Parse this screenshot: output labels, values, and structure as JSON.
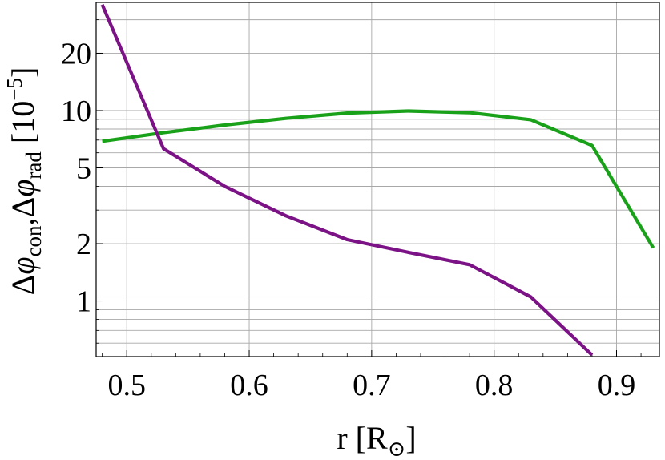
{
  "chart_data": {
    "type": "line",
    "title": "",
    "xlabel": {
      "main": "r [R",
      "symbol": "⊙",
      "close": "]"
    },
    "ylabel": {
      "delta1": "Δ",
      "phi1": "φ",
      "sub1": "con",
      "comma": ",",
      "delta2": "Δ",
      "phi2": "φ",
      "sub2": "rad",
      "unit_open": " [10",
      "unit_exp": "−5",
      "unit_close": "]"
    },
    "x_scale": "linear",
    "y_scale": "log",
    "xlim": [
      0.475,
      0.935
    ],
    "ylim": [
      0.51,
      37
    ],
    "x_ticks": [
      0.5,
      0.6,
      0.7,
      0.8,
      0.9
    ],
    "x_tick_labels": [
      "0.5",
      "0.6",
      "0.7",
      "0.8",
      "0.9"
    ],
    "y_ticks": [
      1,
      2,
      5,
      10,
      20
    ],
    "y_tick_labels": [
      "1",
      "2",
      "5",
      "10",
      "20"
    ],
    "grid": true,
    "series": [
      {
        "color": "#1aa11a",
        "x": [
          0.48,
          0.53,
          0.58,
          0.63,
          0.68,
          0.73,
          0.78,
          0.83,
          0.88,
          0.93
        ],
        "y": [
          6.9,
          7.65,
          8.4,
          9.1,
          9.7,
          9.95,
          9.75,
          8.95,
          6.55,
          1.9
        ]
      },
      {
        "color": "#7b1285",
        "x": [
          0.48,
          0.53,
          0.58,
          0.63,
          0.68,
          0.73,
          0.78,
          0.83,
          0.88
        ],
        "y": [
          36,
          6.3,
          4.0,
          2.8,
          2.1,
          1.8,
          1.55,
          1.05,
          0.52
        ]
      }
    ]
  }
}
